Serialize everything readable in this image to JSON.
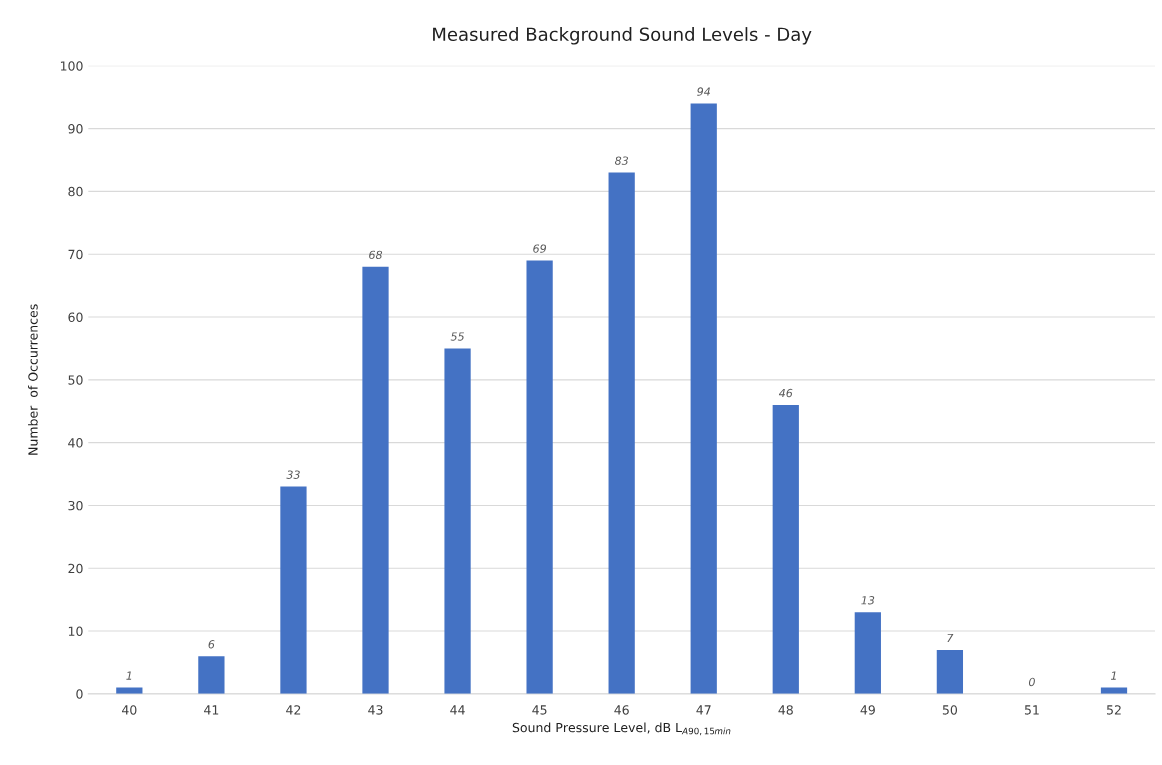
{
  "chart_data": {
    "type": "bar",
    "title": "Measured Background Sound Levels - Day",
    "xlabel": "Sound Pressure Level, dB L$_{A90,15min}$",
    "ylabel": "Number  of Occurrences",
    "categories": [
      "40",
      "41",
      "42",
      "43",
      "44",
      "45",
      "46",
      "47",
      "48",
      "49",
      "50",
      "51",
      "52"
    ],
    "values": [
      1,
      6,
      33,
      68,
      55,
      69,
      83,
      94,
      46,
      13,
      7,
      0,
      1
    ],
    "color": "#4472c4",
    "ylim": [
      0,
      100
    ],
    "yticks": [
      0,
      10,
      20,
      30,
      40,
      50,
      60,
      70,
      80,
      90,
      100
    ],
    "grid": "y",
    "data_labels": true,
    "legend": false
  }
}
